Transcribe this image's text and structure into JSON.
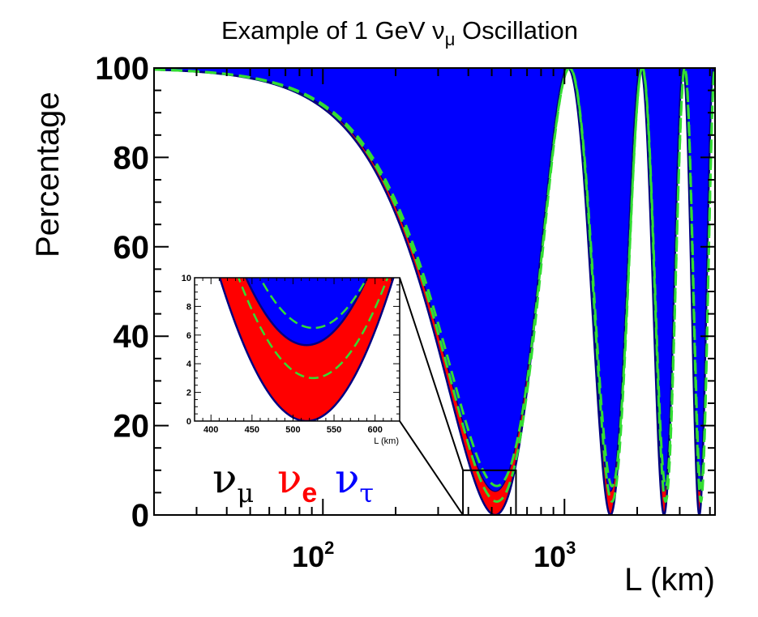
{
  "chart_data": {
    "type": "area",
    "title": "Example of 1 GeV ν",
    "title_sub": "μ",
    "title_end": " Oscillation",
    "ylabel": "Percentage",
    "xlabel": "L (km)",
    "x_scale": "log",
    "xlim": [
      20,
      4200
    ],
    "ylim": [
      0,
      100
    ],
    "y_ticks": [
      "0",
      "20",
      "40",
      "60",
      "80",
      "100"
    ],
    "x_ticks": [
      {
        "base": "10",
        "exp": "2"
      },
      {
        "base": "10",
        "exp": "3"
      }
    ],
    "energy_GeV": 1,
    "series": [
      {
        "name": "ν",
        "sub": "μ",
        "color": "#000000",
        "fill": "#ffffff"
      },
      {
        "name": "ν",
        "sub": "e",
        "color": "#ff0000",
        "fill": "#ff0000"
      },
      {
        "name": "ν",
        "sub": "τ",
        "color": "#0000ff",
        "fill": "#0000ff"
      }
    ],
    "boundary_color": "#000080",
    "dashed_color": "#33dd33",
    "survival_minima_pct": [
      0,
      0,
      0,
      0
    ],
    "survival_peak_L_km": [
      20,
      1030,
      2060,
      3090
    ],
    "electron_appearance_peak_pct": 5.3,
    "inset": {
      "xlim": [
        380,
        630
      ],
      "ylim": [
        0,
        10
      ],
      "x_ticks": [
        "400",
        "450",
        "500",
        "550",
        "600"
      ],
      "y_ticks": [
        "0",
        "2",
        "4",
        "6",
        "8",
        "10"
      ],
      "xlabel": "L (km)"
    }
  }
}
